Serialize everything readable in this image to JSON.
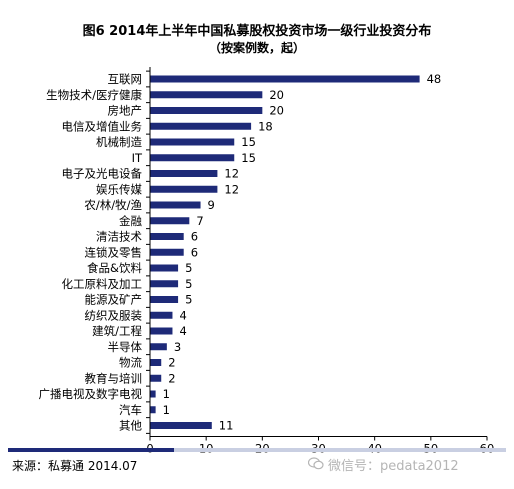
{
  "title": "图6 2014年上半年中国私募股权投资市场一级行业投资分布",
  "subtitle": "（按案例数，起）",
  "chart_data": {
    "type": "bar",
    "orientation": "horizontal",
    "categories": [
      "互联网",
      "生物技术/医疗健康",
      "房地产",
      "电信及增值业务",
      "机械制造",
      "IT",
      "电子及光电设备",
      "娱乐传媒",
      "农/林/牧/渔",
      "金融",
      "清洁技术",
      "连锁及零售",
      "食品&饮料",
      "化工原料及加工",
      "能源及矿产",
      "纺织及服装",
      "建筑/工程",
      "半导体",
      "物流",
      "教育与培训",
      "广播电视及数字电视",
      "汽车",
      "其他"
    ],
    "values": [
      48,
      20,
      20,
      18,
      15,
      15,
      12,
      12,
      9,
      7,
      6,
      6,
      5,
      5,
      5,
      4,
      4,
      3,
      2,
      2,
      1,
      1,
      11
    ],
    "xlim": [
      0,
      60
    ],
    "xticks": [
      0,
      10,
      20,
      30,
      40,
      50,
      60
    ],
    "bar_color": "#1e2a78",
    "label_color": "#000000",
    "grid": false
  },
  "footer": {
    "source": "来源：私募通  2014.07",
    "watermark": "微信号：pedata2012",
    "watermark_icon": "wechat-icon"
  }
}
